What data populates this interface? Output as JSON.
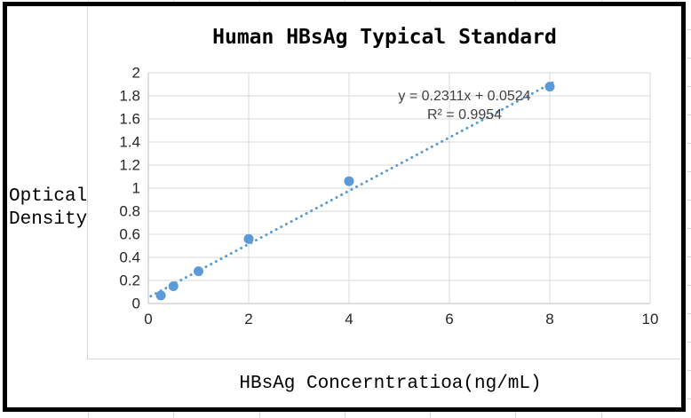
{
  "sheet": {
    "ylabel_line1": "Optical",
    "ylabel_line2": "Density",
    "xlabel": "HBsAg Concerntratioa(ng/mL)"
  },
  "colors": {
    "accent_blue": "#5B9BD5",
    "gridline": "#D9D9D9",
    "axis_line": "#BFBFBF",
    "tick_text": "#262626",
    "equation_text": "#404040",
    "title_text": "#000000"
  },
  "chart_data": {
    "type": "scatter",
    "title": "Human HBsAg Typical Standard",
    "xlabel": "HBsAg Concerntratioa(ng/mL)",
    "ylabel": "Optical Density",
    "x": [
      0.25,
      0.5,
      1,
      2,
      4,
      8
    ],
    "y": [
      0.07,
      0.15,
      0.28,
      0.56,
      1.06,
      1.88
    ],
    "xlim": [
      0,
      10
    ],
    "ylim": [
      0,
      2
    ],
    "x_tick_values": [
      0,
      2,
      4,
      6,
      8,
      10
    ],
    "x_tick_labels": [
      "0",
      "2",
      "4",
      "6",
      "8",
      "10"
    ],
    "y_tick_values": [
      0,
      0.2,
      0.4,
      0.6,
      0.8,
      1,
      1.2,
      1.4,
      1.6,
      1.8,
      2
    ],
    "y_tick_labels": [
      "0",
      "0.2",
      "0.4",
      "0.6",
      "0.8",
      "1",
      "1.2",
      "1.4",
      "1.6",
      "1.8",
      "2"
    ],
    "grid": true,
    "legend": false,
    "trendline": {
      "style": "dotted",
      "slope": 0.2311,
      "intercept": 0.0524,
      "x_start": 0.05,
      "x_end": 8.1,
      "equation_label": "y = 0.2311x + 0.0524",
      "r2_label": "R² = 0.9954"
    }
  }
}
